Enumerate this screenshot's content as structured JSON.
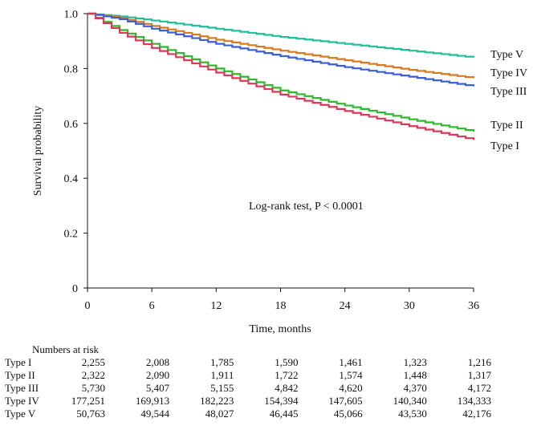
{
  "chart_data": {
    "type": "line",
    "step": true,
    "title": "",
    "xlabel": "Time,  months",
    "ylabel": "Survival  probability",
    "xlim": [
      0,
      36
    ],
    "ylim": [
      0,
      1.0
    ],
    "x_ticks": [
      0,
      6,
      12,
      18,
      24,
      30,
      36
    ],
    "x_tick_labels": [
      "0",
      "6",
      "12",
      "18",
      "24",
      "30",
      "36"
    ],
    "y_ticks": [
      0,
      0.2,
      0.4,
      0.6,
      0.8,
      1.0
    ],
    "y_tick_labels": [
      "0",
      "0.2",
      "0.4",
      "0.6",
      "0.8",
      "1.0"
    ],
    "annotation": "Log-rank test,  P < 0.0001",
    "series": [
      {
        "name": "Type V",
        "label": "Type V",
        "color": "#1fbf9a",
        "x": [
          0,
          3,
          6,
          12,
          18,
          24,
          30,
          36
        ],
        "y": [
          1.0,
          0.99,
          0.975,
          0.945,
          0.915,
          0.89,
          0.865,
          0.84
        ]
      },
      {
        "name": "Type IV",
        "label": "Type IV",
        "color": "#d87a22",
        "x": [
          0,
          3,
          6,
          12,
          18,
          24,
          30,
          36
        ],
        "y": [
          1.0,
          0.985,
          0.955,
          0.905,
          0.865,
          0.83,
          0.795,
          0.765
        ]
      },
      {
        "name": "Type III",
        "label": "Type III",
        "color": "#3a5fd6",
        "x": [
          0,
          3,
          6,
          12,
          18,
          24,
          30,
          36
        ],
        "y": [
          1.0,
          0.98,
          0.945,
          0.89,
          0.845,
          0.805,
          0.77,
          0.735
        ]
      },
      {
        "name": "Type II",
        "label": "Type II",
        "color": "#2eb82e",
        "x": [
          0,
          3,
          6,
          12,
          18,
          24,
          30,
          36
        ],
        "y": [
          1.0,
          0.94,
          0.89,
          0.8,
          0.72,
          0.665,
          0.615,
          0.57
        ]
      },
      {
        "name": "Type I",
        "label": "Type I",
        "color": "#d93a5a",
        "x": [
          0,
          3,
          6,
          12,
          18,
          24,
          30,
          36
        ],
        "y": [
          1.0,
          0.93,
          0.875,
          0.785,
          0.705,
          0.645,
          0.59,
          0.54
        ]
      }
    ]
  },
  "risk_table": {
    "title": "Numbers at risk",
    "rows": [
      {
        "label": "Type I",
        "values": [
          "2,255",
          "2,008",
          "1,785",
          "1,590",
          "1,461",
          "1,323",
          "1,216"
        ]
      },
      {
        "label": "Type II",
        "values": [
          "2,322",
          "2,090",
          "1,911",
          "1,722",
          "1,574",
          "1,448",
          "1,317"
        ]
      },
      {
        "label": "Type III",
        "values": [
          "5,730",
          "5,407",
          "5,155",
          "4,842",
          "4,620",
          "4,370",
          "4,172"
        ]
      },
      {
        "label": "Type IV",
        "values": [
          "177,251",
          "169,913",
          "182,223",
          "154,394",
          "147,605",
          "140,340",
          "134,333"
        ]
      },
      {
        "label": "Type V",
        "values": [
          "50,763",
          "49,544",
          "48,027",
          "46,445",
          "45,066",
          "43,530",
          "42,176"
        ]
      }
    ]
  }
}
